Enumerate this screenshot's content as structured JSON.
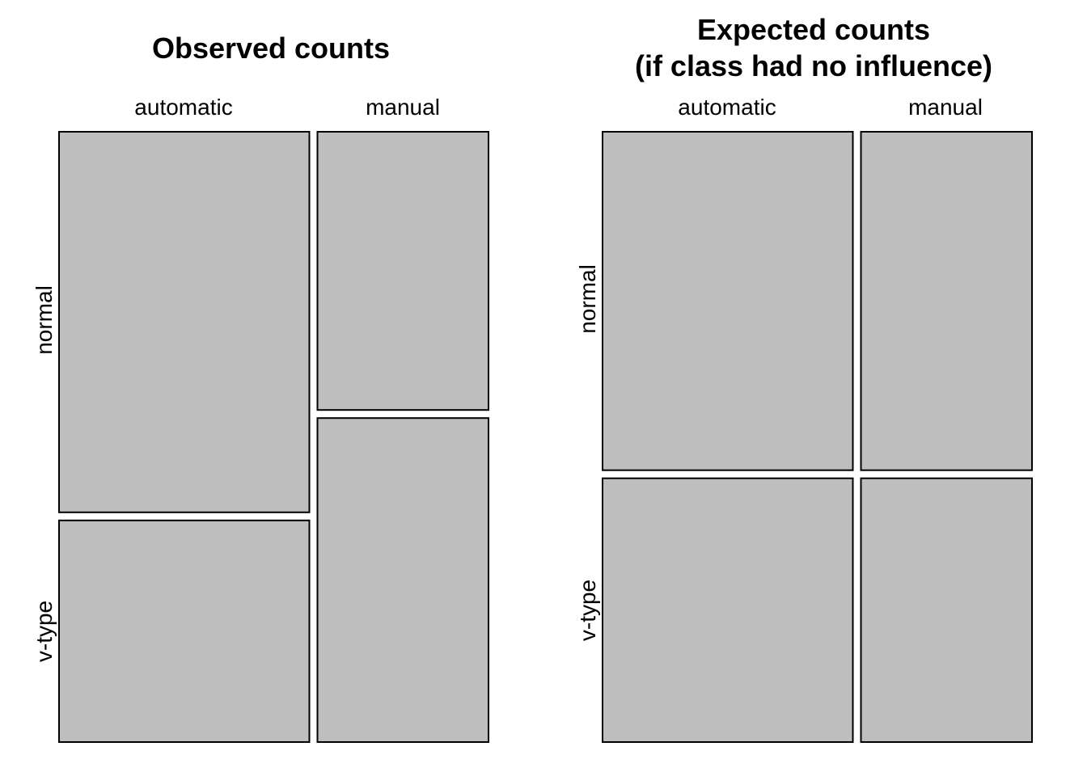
{
  "chart_data": [
    {
      "type": "mosaic",
      "title": "Observed counts",
      "columns": [
        "automatic",
        "manual"
      ],
      "rows": [
        "normal",
        "v-type"
      ],
      "column_proportions": [
        0.594,
        0.406
      ],
      "row_proportions_within_column": [
        [
          0.632,
          0.368
        ],
        [
          0.462,
          0.538
        ]
      ],
      "colors": {
        "tile": "#bebebe",
        "border": "#000000"
      }
    },
    {
      "type": "mosaic",
      "title": "Expected counts",
      "subtitle": "(if class had no influence)",
      "columns": [
        "automatic",
        "manual"
      ],
      "rows": [
        "normal",
        "v-type"
      ],
      "column_proportions": [
        0.594,
        0.406
      ],
      "row_proportions_within_column": [
        [
          0.562,
          0.438
        ],
        [
          0.562,
          0.438
        ]
      ],
      "colors": {
        "tile": "#bebebe",
        "border": "#000000"
      }
    }
  ]
}
